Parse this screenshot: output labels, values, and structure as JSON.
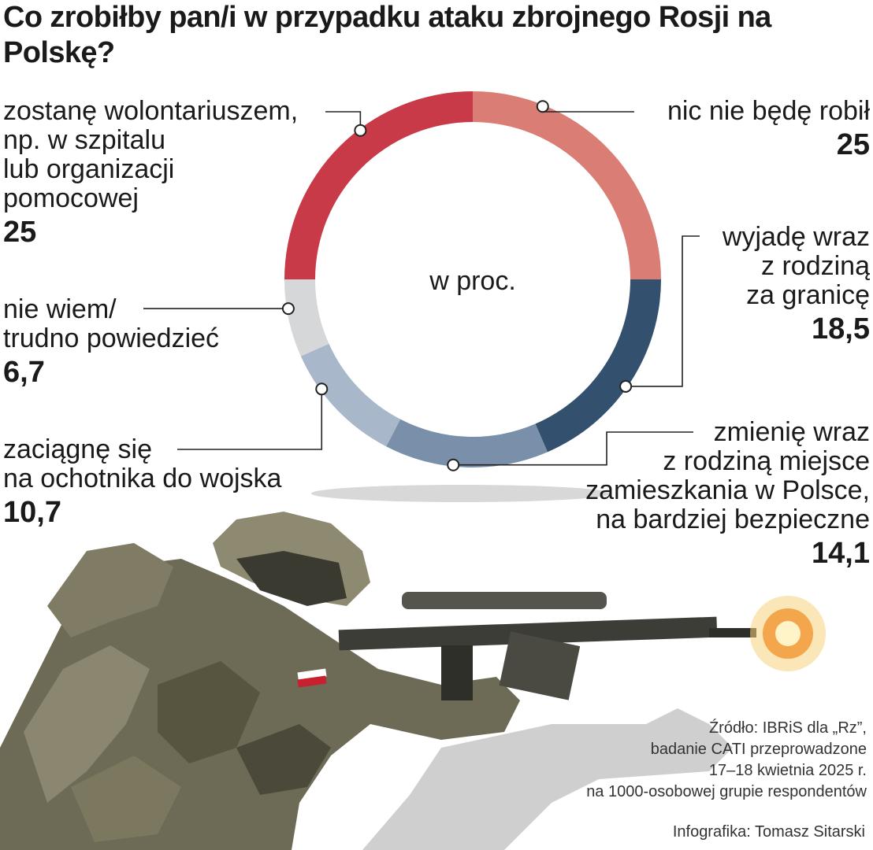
{
  "title": "Co zrobiłby pan/i w przypadku ataku zbrojnego Rosji na Polskę?",
  "chart_data": {
    "type": "pie",
    "center_label": "w proc.",
    "categories": [
      "nic nie będę robił",
      "wyjadę wraz z rodziną za granicę",
      "zmienię wraz z rodziną miejsce zamieszkania w Polsce, na bardziej bezpieczne",
      "zaciągnę się na ochotnika do wojska",
      "nie wiem/ trudno powiedzieć",
      "zostanę wolontariuszem, np. w szpitalu lub organizacji pomocowej"
    ],
    "values": [
      25,
      18.5,
      14.1,
      10.7,
      6.7,
      25
    ],
    "colors": [
      "#d97d75",
      "#33506e",
      "#7a90aa",
      "#a8b7c9",
      "#d6d7d9",
      "#c93a48"
    ]
  },
  "labels": {
    "nic": {
      "text": "nic nie będę robił",
      "value": "25"
    },
    "wyjade": {
      "text": "wyjadę wraz\nz rodziną\nza granicę",
      "value": "18,5"
    },
    "zmienie": {
      "text": "zmienię wraz\nz rodziną miejsce\nzamieszkania w Polsce,\nna bardziej bezpieczne",
      "value": "14,1"
    },
    "zaciagne": {
      "text": "zaciągnę się\nna ochotnika do wojska",
      "value": "10,7"
    },
    "niewiem": {
      "text": "nie wiem/\ntrudno powiedzieć",
      "value": "6,7"
    },
    "wolontariusz": {
      "text": "zostanę wolontariuszem,\nnp. w szpitalu\nlub organizacji\npomocowej",
      "value": "25"
    }
  },
  "source": {
    "line1": "Źródło: IBRiS dla „Rz”,",
    "line2": "badanie CATI przeprowadzone",
    "line3": "17–18 kwietnia 2025 r.",
    "line4": "na 1000-osobowej grupie respondentów"
  },
  "credit": "Infografika: Tomasz Sitarski"
}
